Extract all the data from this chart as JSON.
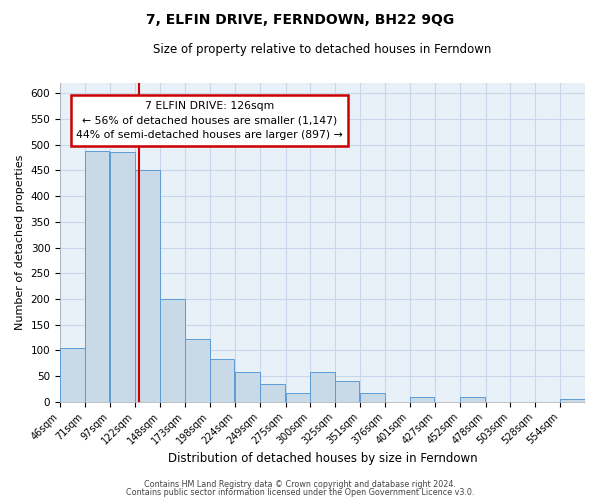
{
  "title": "7, ELFIN DRIVE, FERNDOWN, BH22 9QG",
  "subtitle": "Size of property relative to detached houses in Ferndown",
  "xlabel": "Distribution of detached houses by size in Ferndown",
  "ylabel": "Number of detached properties",
  "bin_labels": [
    "46sqm",
    "71sqm",
    "97sqm",
    "122sqm",
    "148sqm",
    "173sqm",
    "198sqm",
    "224sqm",
    "249sqm",
    "275sqm",
    "300sqm",
    "325sqm",
    "351sqm",
    "376sqm",
    "401sqm",
    "427sqm",
    "452sqm",
    "478sqm",
    "503sqm",
    "528sqm",
    "554sqm"
  ],
  "bin_edges": [
    46,
    71,
    97,
    122,
    148,
    173,
    198,
    224,
    249,
    275,
    300,
    325,
    351,
    376,
    401,
    427,
    452,
    478,
    503,
    528,
    554
  ],
  "bar_heights": [
    105,
    487,
    485,
    450,
    200,
    122,
    83,
    57,
    35,
    17,
    57,
    40,
    17,
    0,
    10,
    0,
    10,
    0,
    0,
    0,
    5
  ],
  "bar_color": "#c8d9e8",
  "bar_edge_color": "#5b9bd5",
  "red_line_x": 126,
  "annotation_line0": "7 ELFIN DRIVE: 126sqm",
  "annotation_line1": "← 56% of detached houses are smaller (1,147)",
  "annotation_line2": "44% of semi-detached houses are larger (897) →",
  "annotation_box_color": "#ffffff",
  "annotation_box_edge": "#cc0000",
  "grid_color": "#c8d8ea",
  "background_color": "#e8f0f8",
  "fig_background": "#ffffff",
  "footer1": "Contains HM Land Registry data © Crown copyright and database right 2024.",
  "footer2": "Contains public sector information licensed under the Open Government Licence v3.0.",
  "ylim": [
    0,
    620
  ],
  "yticks": [
    0,
    50,
    100,
    150,
    200,
    250,
    300,
    350,
    400,
    450,
    500,
    550,
    600
  ]
}
